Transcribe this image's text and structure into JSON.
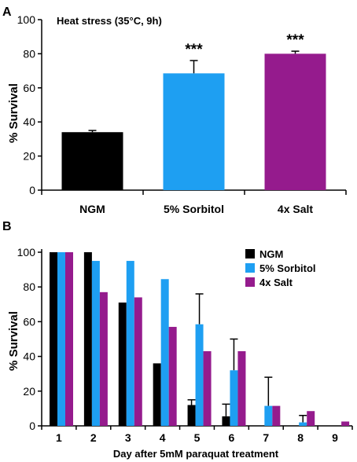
{
  "panel_a_label": "A",
  "panel_b_label": "B",
  "chart_data": [
    {
      "type": "bar",
      "panel": "A",
      "annotation": "Heat stress (35°C, 9h)",
      "ylabel": "% Survival",
      "xlabel": "",
      "ylim": [
        0,
        100
      ],
      "yticks": [
        0,
        20,
        40,
        60,
        80,
        100
      ],
      "categories": [
        "NGM",
        "5% Sorbitol",
        "4x Salt"
      ],
      "values": [
        34,
        68.5,
        80
      ],
      "errors": [
        1,
        7.5,
        1.5
      ],
      "significance": [
        "",
        "***",
        "***"
      ],
      "colors": [
        "#000000",
        "#1E9FF2",
        "#951B8D"
      ],
      "grid": false
    },
    {
      "type": "bar",
      "panel": "B",
      "ylabel": "% Survival",
      "xlabel": "Day after 5mM paraquat treatment",
      "ylim": [
        0,
        100
      ],
      "yticks": [
        0,
        20,
        40,
        60,
        80,
        100
      ],
      "categories": [
        "1",
        "2",
        "3",
        "4",
        "5",
        "6",
        "7",
        "8",
        "9"
      ],
      "series": [
        {
          "name": "NGM",
          "color": "#000000",
          "values": [
            100,
            100,
            71,
            36,
            12,
            5.5,
            0,
            0,
            0
          ],
          "errors": [
            0,
            0,
            0,
            0,
            3,
            7,
            0,
            0,
            0
          ]
        },
        {
          "name": "5% Sorbitol",
          "color": "#1E9FF2",
          "values": [
            100,
            95,
            95,
            84.5,
            58.5,
            32,
            11.5,
            2,
            0
          ],
          "errors": [
            0,
            0,
            0,
            0,
            17.5,
            18,
            16.5,
            4,
            0
          ]
        },
        {
          "name": "4x Salt",
          "color": "#951B8D",
          "values": [
            100,
            77,
            74,
            57,
            43,
            43,
            11.5,
            8.5,
            2.5
          ],
          "errors": [
            0,
            0,
            0,
            0,
            0,
            0,
            0,
            0,
            0
          ]
        }
      ],
      "legend_position": "top-right",
      "grid": false
    }
  ]
}
